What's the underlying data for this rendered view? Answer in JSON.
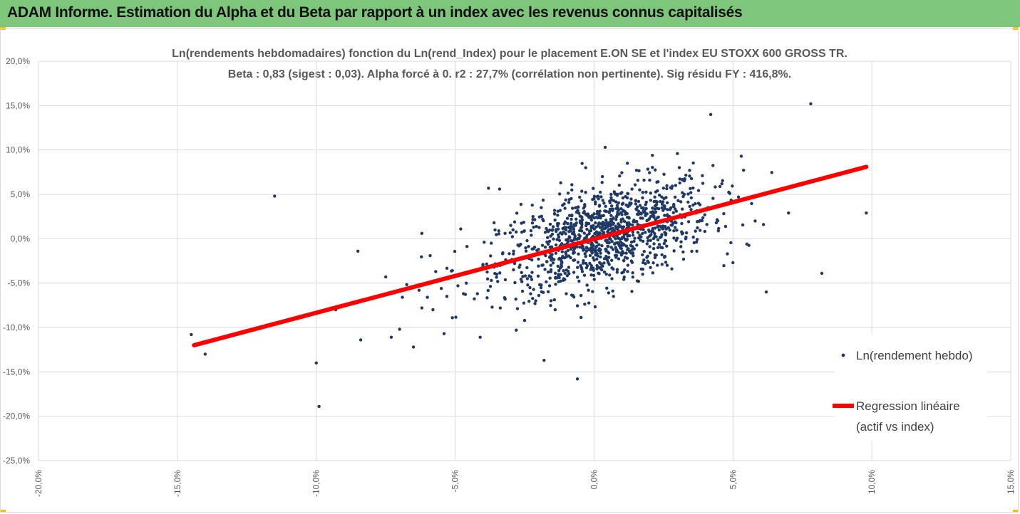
{
  "header": {
    "title": "ADAM Informe. Estimation du Alpha et du Beta par rapport à un index avec les revenus connus capitalisés"
  },
  "colors": {
    "banner": "#7dc67b",
    "points": "#1f3864",
    "regression": "#ff0000",
    "grid": "#d9d9d9",
    "text": "#595959"
  },
  "chart_data": {
    "type": "scatter",
    "title": "Ln(rendements hebdomadaires) fonction du Ln(rend_Index) pour le placement E.ON SE et l'index EU STOXX 600 GROSS TR.",
    "subtitle": "Beta : 0,83 (sigest : 0,03).  Alpha forcé à 0. r2 : 27,7% (corrélation non pertinente). Sig résidu FY : 416,8%.",
    "xlim": [
      -20,
      15
    ],
    "ylim": [
      -25,
      20
    ],
    "x_ticks": [
      "-20,0%",
      "-15,0%",
      "-10,0%",
      "-5,0%",
      "0,0%",
      "5,0%",
      "10,0%",
      "15,0%"
    ],
    "y_ticks": [
      "20,0%",
      "15,0%",
      "10,0%",
      "5,0%",
      "0,0%",
      "-5,0%",
      "-10,0%",
      "-15,0%",
      "-20,0%",
      "-25,0%"
    ],
    "x_tick_values": [
      -20,
      -15,
      -10,
      -5,
      0,
      5,
      10,
      15
    ],
    "y_tick_values": [
      20,
      15,
      10,
      5,
      0,
      -5,
      -10,
      -15,
      -20,
      -25
    ],
    "legend_position": "right",
    "series": [
      {
        "name": "Ln(rendement hebdo)",
        "kind": "points",
        "points": [
          [
            -14.5,
            -10.8
          ],
          [
            -14.0,
            -13.0
          ],
          [
            -11.5,
            4.8
          ],
          [
            -10.0,
            -14.0
          ],
          [
            -9.9,
            -18.9
          ],
          [
            -9.3,
            -8.0
          ],
          [
            -8.5,
            -1.4
          ],
          [
            -8.4,
            -11.4
          ],
          [
            -7.5,
            -4.3
          ],
          [
            -7.3,
            -11.1
          ],
          [
            -7.0,
            -10.2
          ],
          [
            -6.9,
            -6.6
          ],
          [
            -6.5,
            -12.2
          ],
          [
            -6.3,
            -5.8
          ],
          [
            -6.2,
            -7.8
          ],
          [
            -6.2,
            0.6
          ],
          [
            -6.0,
            -6.6
          ],
          [
            -5.9,
            -1.9
          ],
          [
            -5.8,
            -8.0
          ],
          [
            -5.7,
            -3.7
          ],
          [
            -5.6,
            -4.7
          ],
          [
            -5.5,
            -5.6
          ],
          [
            -5.4,
            -10.7
          ],
          [
            -5.3,
            -6.5
          ],
          [
            -5.1,
            -8.9
          ],
          [
            -4.9,
            -5.3
          ],
          [
            -4.8,
            1.1
          ],
          [
            -4.7,
            -6.2
          ],
          [
            -4.6,
            -5.0
          ],
          [
            -4.4,
            -3.7
          ],
          [
            -4.2,
            -6.2
          ],
          [
            -4.1,
            -11.1
          ],
          [
            -4.0,
            -2.9
          ],
          [
            -3.8,
            5.7
          ],
          [
            -3.7,
            -0.5
          ],
          [
            -3.6,
            1.8
          ],
          [
            -3.5,
            -4.0
          ],
          [
            -3.4,
            5.6
          ],
          [
            -3.2,
            -6.8
          ],
          [
            -3.0,
            1.5
          ],
          [
            -2.9,
            -3.5
          ],
          [
            -2.8,
            -10.3
          ],
          [
            -2.7,
            -0.8
          ],
          [
            -2.5,
            -9.2
          ],
          [
            -2.4,
            -4.5
          ],
          [
            -2.2,
            2.5
          ],
          [
            -2.1,
            -7.0
          ],
          [
            -2.0,
            -1.2
          ],
          [
            -1.9,
            3.5
          ],
          [
            -1.8,
            -13.7
          ],
          [
            -1.7,
            -2.6
          ],
          [
            -1.6,
            -5.3
          ],
          [
            -1.5,
            1.0
          ],
          [
            -1.4,
            -8.0
          ],
          [
            -1.3,
            3.1
          ],
          [
            -1.2,
            6.3
          ],
          [
            -1.1,
            -3.6
          ],
          [
            -1.0,
            -6.2
          ],
          [
            -0.9,
            0.8
          ],
          [
            -0.8,
            5.5
          ],
          [
            -0.7,
            -2.4
          ],
          [
            -0.6,
            -15.8
          ],
          [
            -0.5,
            2.0
          ],
          [
            -0.4,
            -0.9
          ],
          [
            -0.3,
            8.0
          ],
          [
            -0.2,
            -5.8
          ],
          [
            -0.1,
            1.4
          ],
          [
            0.0,
            4.5
          ],
          [
            0.1,
            -2.3
          ],
          [
            0.2,
            0.5
          ],
          [
            0.3,
            7.0
          ],
          [
            0.4,
            10.3
          ],
          [
            0.5,
            -1.5
          ],
          [
            0.6,
            2.2
          ],
          [
            0.7,
            -6.5
          ],
          [
            0.8,
            3.4
          ],
          [
            0.9,
            -0.7
          ],
          [
            1.0,
            5.2
          ],
          [
            1.1,
            -3.5
          ],
          [
            1.2,
            8.5
          ],
          [
            1.3,
            1.6
          ],
          [
            1.4,
            -1.6
          ],
          [
            1.5,
            4.3
          ],
          [
            1.6,
            -4.8
          ],
          [
            1.7,
            2.8
          ],
          [
            1.8,
            6.6
          ],
          [
            1.9,
            -2.1
          ],
          [
            2.0,
            0.3
          ],
          [
            2.1,
            9.4
          ],
          [
            2.2,
            3.7
          ],
          [
            2.3,
            -1.0
          ],
          [
            2.5,
            5.7
          ],
          [
            2.6,
            1.1
          ],
          [
            2.8,
            -3.4
          ],
          [
            3.0,
            9.6
          ],
          [
            3.1,
            2.7
          ],
          [
            3.3,
            0.0
          ],
          [
            3.5,
            4.6
          ],
          [
            3.7,
            -1.4
          ],
          [
            3.9,
            7.1
          ],
          [
            4.1,
            3.5
          ],
          [
            4.2,
            14.0
          ],
          [
            4.4,
            1.8
          ],
          [
            4.6,
            6.2
          ],
          [
            4.8,
            -1.7
          ],
          [
            5.0,
            -2.7
          ],
          [
            5.2,
            4.7
          ],
          [
            5.3,
            9.3
          ],
          [
            5.5,
            -0.6
          ],
          [
            5.8,
            2.0
          ],
          [
            6.2,
            -6.0
          ],
          [
            6.1,
            1.6
          ],
          [
            7.0,
            2.9
          ],
          [
            7.8,
            15.2
          ],
          [
            8.2,
            -3.9
          ],
          [
            9.8,
            2.9
          ]
        ]
      },
      {
        "name": "Regression linéaire (actif vs index)",
        "legend_lines": [
          "Regression linéaire",
          "(actif vs index)"
        ],
        "kind": "line",
        "x": [
          -14.4,
          9.8
        ],
        "y": [
          -12.0,
          8.1
        ]
      }
    ],
    "dense_cloud": {
      "approx_count": 1100,
      "x_mean": 0.4,
      "x_sd": 1.9,
      "slope": 0.83,
      "residual_sd": 2.7
    }
  }
}
